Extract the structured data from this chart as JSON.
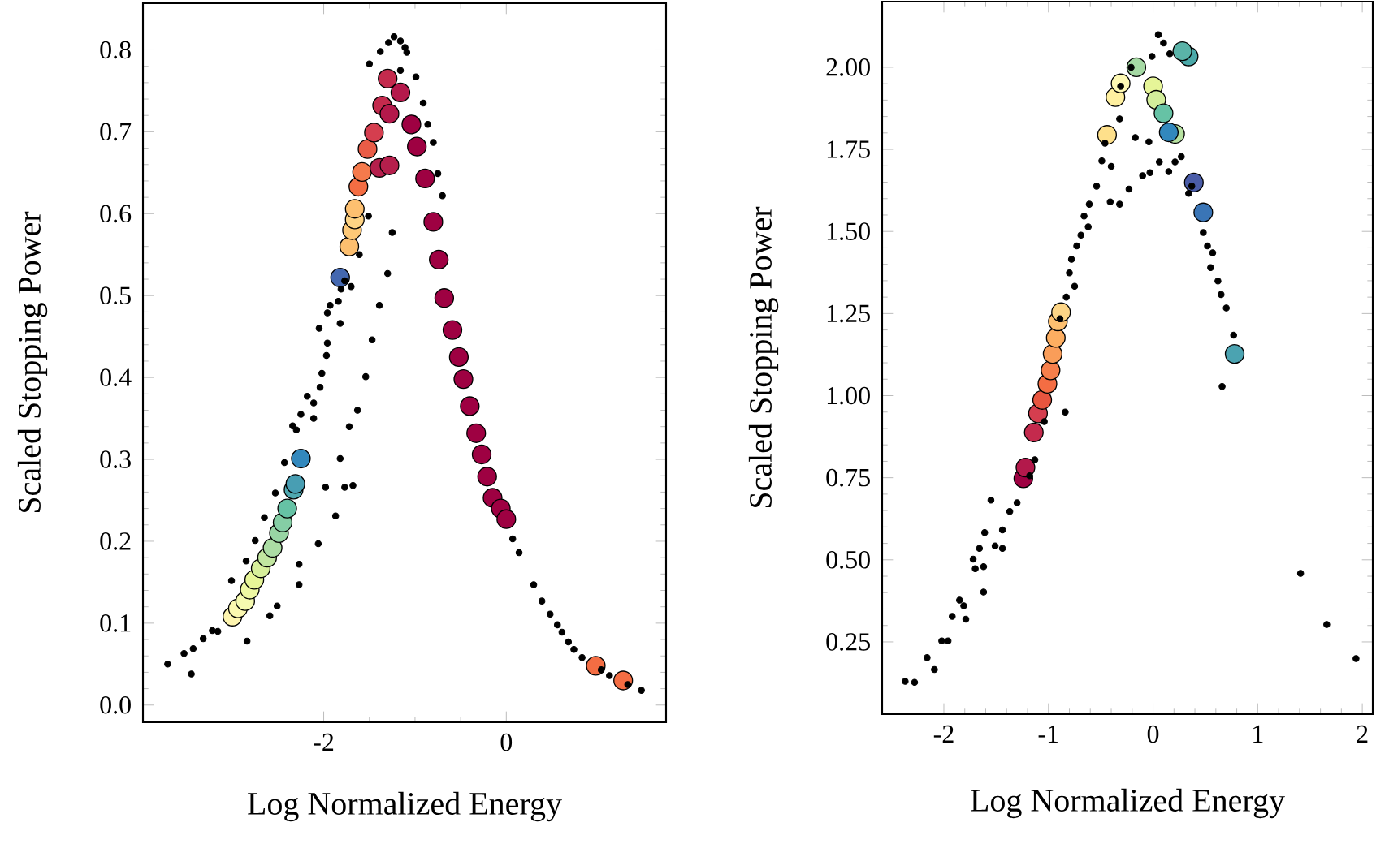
{
  "chart_data": [
    {
      "type": "scatter",
      "xlabel": "Log Normalized Energy",
      "ylabel": "Scaled Stopping Power",
      "marker": "circle",
      "xlim": [
        -3.98,
        1.75
      ],
      "ylim": [
        -0.021,
        0.857
      ],
      "xticks": [
        -2,
        0
      ],
      "yticks": [
        {
          "value": 0,
          "label": "0.0"
        },
        0.1,
        0.2,
        0.3,
        0.4,
        0.5,
        0.6,
        0.7,
        0.8
      ],
      "series": [
        {
          "color": "#000000",
          "x": [
            -3.71,
            -3.53,
            -3.45,
            -3.43,
            -3.32,
            -3.22,
            -3.16,
            -3.01,
            -2.85,
            -2.84,
            -2.75,
            -2.65,
            -2.59,
            -2.51,
            -2.53,
            -2.43,
            -2.34,
            -2.27,
            -2.27,
            -2.3,
            -2.25,
            -2.18,
            -2.11,
            -2.11,
            -2.06,
            -2.05,
            -2.04,
            -2.02,
            -1.98,
            -1.97,
            -1.96,
            -1.96,
            -1.93,
            -1.87,
            -1.84,
            -1.82,
            -1.82,
            -1.81,
            -1.77,
            -1.77,
            -1.72,
            -1.7,
            -1.68,
            -1.63,
            -1.61,
            -1.54,
            -1.51,
            -1.5,
            -1.47,
            -1.39,
            -1.38,
            -1.3,
            -1.29,
            -1.25,
            -1.23,
            -1.16,
            -1.11,
            -1.09,
            -1.16,
            -0.99,
            -0.91,
            -0.86,
            -0.8,
            -0.75,
            -0.7,
            0.07,
            0.14,
            0.3,
            0.39,
            0.48,
            0.56,
            0.61,
            0.68,
            0.74,
            0.83,
            1.04,
            1.13,
            1.33,
            1.48
          ],
          "values": [
            0.05,
            0.063,
            0.038,
            0.069,
            0.081,
            0.091,
            0.09,
            0.152,
            0.176,
            0.078,
            0.201,
            0.229,
            0.109,
            0.121,
            0.259,
            0.296,
            0.341,
            0.172,
            0.147,
            0.336,
            0.355,
            0.377,
            0.369,
            0.35,
            0.197,
            0.46,
            0.388,
            0.405,
            0.266,
            0.427,
            0.442,
            0.479,
            0.488,
            0.231,
            0.493,
            0.301,
            0.466,
            0.508,
            0.518,
            0.266,
            0.34,
            0.511,
            0.268,
            0.36,
            0.55,
            0.401,
            0.597,
            0.783,
            0.446,
            0.488,
            0.798,
            0.527,
            0.809,
            0.577,
            0.816,
            0.811,
            0.803,
            0.797,
            0.775,
            0.767,
            0.735,
            0.709,
            0.687,
            0.649,
            0.622,
            0.203,
            0.186,
            0.147,
            0.127,
            0.111,
            0.098,
            0.089,
            0.077,
            0.068,
            0.058,
            0.043,
            0.036,
            0.025,
            0.018
          ]
        },
        {
          "x": [
            -3.0,
            -2.94,
            -2.86,
            -2.81,
            -2.76,
            -2.69,
            -2.62,
            -2.56,
            -2.49,
            -2.45,
            -2.4,
            -2.33,
            -2.31,
            -2.25,
            -1.82,
            -1.72,
            -1.69,
            -1.66,
            -1.66,
            -1.62,
            -1.58,
            -1.52,
            -1.45,
            -1.39,
            -1.28,
            -1.36,
            -1.3,
            -1.28,
            -1.16,
            -1.04,
            -0.98,
            -0.89,
            -0.8,
            -0.74,
            -0.68,
            -0.59,
            -0.52,
            -0.47,
            -0.4,
            -0.33,
            -0.27,
            -0.21,
            -0.15,
            -0.06,
            0.0,
            0.98,
            1.28
          ],
          "values": [
            0.108,
            0.118,
            0.127,
            0.141,
            0.153,
            0.167,
            0.18,
            0.192,
            0.21,
            0.223,
            0.24,
            0.263,
            0.27,
            0.301,
            0.522,
            0.56,
            0.58,
            0.593,
            0.606,
            0.633,
            0.651,
            0.679,
            0.699,
            0.656,
            0.659,
            0.732,
            0.765,
            0.722,
            0.748,
            0.709,
            0.682,
            0.643,
            0.59,
            0.544,
            0.497,
            0.458,
            0.425,
            0.398,
            0.365,
            0.332,
            0.306,
            0.279,
            0.253,
            0.24,
            0.227,
            0.048,
            0.03
          ],
          "colors": [
            "#fef5af",
            "#fbf8b0",
            "#f5fab0",
            "#eef8a3",
            "#e6f598",
            "#d7ef9b",
            "#c1e6a0",
            "#abdda4",
            "#98d5a4",
            "#85cea5",
            "#66c2a5",
            "#4fa8b0",
            "#489eb3",
            "#3288bd",
            "#4468b0",
            "#fdbf6f",
            "#fdc877",
            "#fed384",
            "#fdc070",
            "#f46d43",
            "#f57a4c",
            "#e95c47",
            "#d53e4f",
            "#b51f4c",
            "#b51f4c",
            "#c42a4d",
            "#c42a4d",
            "#b4194b",
            "#b4194b",
            "#9e0142",
            "#9e0142",
            "#9e0142",
            "#9e0142",
            "#9e0142",
            "#9e0142",
            "#9e0142",
            "#9e0142",
            "#9e0142",
            "#9e0142",
            "#9e0142",
            "#9e0142",
            "#9e0142",
            "#9e0142",
            "#9e0142",
            "#9e0142",
            "#f46d43",
            "#f46d43"
          ]
        }
      ]
    },
    {
      "type": "scatter",
      "xlabel": "Log Normalized Energy",
      "ylabel": "Scaled Stopping Power",
      "marker": "circle",
      "xlim": [
        -2.59,
        2.1
      ],
      "ylim": [
        0.03,
        2.2
      ],
      "xticks": [
        -2,
        -1,
        0,
        1,
        2
      ],
      "yticks": [
        0.25,
        {
          "value": 0.5,
          "label": "0.50"
        },
        0.75,
        {
          "value": 1,
          "label": "1.00"
        },
        1.25,
        {
          "value": 1.5,
          "label": "1.50"
        },
        1.75,
        {
          "value": 2,
          "label": "2.00"
        }
      ],
      "series": [
        {
          "color": "#000000",
          "x": [
            -2.37,
            -2.28,
            -2.16,
            -2.09,
            -2.02,
            -1.96,
            -1.92,
            -1.85,
            -1.79,
            -1.81,
            -1.72,
            -1.7,
            -1.66,
            -1.62,
            -1.61,
            -1.62,
            -1.55,
            -1.51,
            -1.44,
            -1.44,
            -1.37,
            -1.3,
            -1.18,
            -1.13,
            -1.04,
            -0.89,
            -0.84,
            -0.83,
            -0.8,
            -0.78,
            -0.75,
            -0.73,
            -0.69,
            -0.66,
            -0.62,
            -0.61,
            -0.54,
            -0.49,
            -0.46,
            -0.4,
            -0.41,
            -0.32,
            -0.32,
            -0.23,
            -0.31,
            -0.17,
            -0.21,
            -0.1,
            -0.03,
            -0.04,
            -0.01,
            0.05,
            0.1,
            0.16,
            0.06,
            0.15,
            0.21,
            0.27,
            0.34,
            0.37,
            0.48,
            0.52,
            0.57,
            0.55,
            0.62,
            0.65,
            0.7,
            0.77,
            0.66,
            1.41,
            1.66,
            1.94
          ],
          "values": [
            0.13,
            0.127,
            0.202,
            0.166,
            0.253,
            0.253,
            0.328,
            0.377,
            0.319,
            0.36,
            0.502,
            0.473,
            0.535,
            0.479,
            0.583,
            0.402,
            0.682,
            0.542,
            0.535,
            0.591,
            0.647,
            0.674,
            0.756,
            0.805,
            0.921,
            1.234,
            0.95,
            1.3,
            1.374,
            1.415,
            1.333,
            1.456,
            1.489,
            1.547,
            1.514,
            1.583,
            1.638,
            1.715,
            1.769,
            1.698,
            1.59,
            1.583,
            1.843,
            1.629,
            1.942,
            1.786,
            2.0,
            1.67,
            1.679,
            1.773,
            2.033,
            2.099,
            2.074,
            2.041,
            1.712,
            1.682,
            1.712,
            1.728,
            1.616,
            1.638,
            1.497,
            1.456,
            1.435,
            1.39,
            1.349,
            1.308,
            1.267,
            1.184,
            1.028,
            0.459,
            0.303,
            0.199
          ]
        },
        {
          "x": [
            -1.24,
            -1.22,
            -1.14,
            -1.1,
            -1.06,
            -1.01,
            -0.98,
            -0.96,
            -0.93,
            -0.91,
            -0.88,
            -0.44,
            -0.36,
            -0.31,
            -0.16,
            0.0,
            0.03,
            0.1,
            0.21,
            0.15,
            0.39,
            0.48,
            0.78,
            0.34,
            0.28
          ],
          "values": [
            0.748,
            0.781,
            0.888,
            0.946,
            0.987,
            1.036,
            1.077,
            1.127,
            1.176,
            1.226,
            1.254,
            1.794,
            1.909,
            1.951,
            2.0,
            1.942,
            1.901,
            1.86,
            1.797,
            1.802,
            1.649,
            1.558,
            1.127,
            2.033,
            2.049
          ],
          "colors": [
            "#9e0142",
            "#b3194b",
            "#c42a4d",
            "#d53e4f",
            "#e8553f",
            "#f46d43",
            "#f67f4b",
            "#f99d59",
            "#fdae61",
            "#fdc070",
            "#fdd586",
            "#fee08b",
            "#fff0a0",
            "#fdf8b3",
            "#a5d9a4",
            "#e6f598",
            "#d3ee9b",
            "#66c2a5",
            "#b7e2a1",
            "#3288bd",
            "#4a5ca8",
            "#3a75b6",
            "#4ba3b1",
            "#4aa8a8",
            "#5ab3a8"
          ]
        }
      ]
    }
  ]
}
